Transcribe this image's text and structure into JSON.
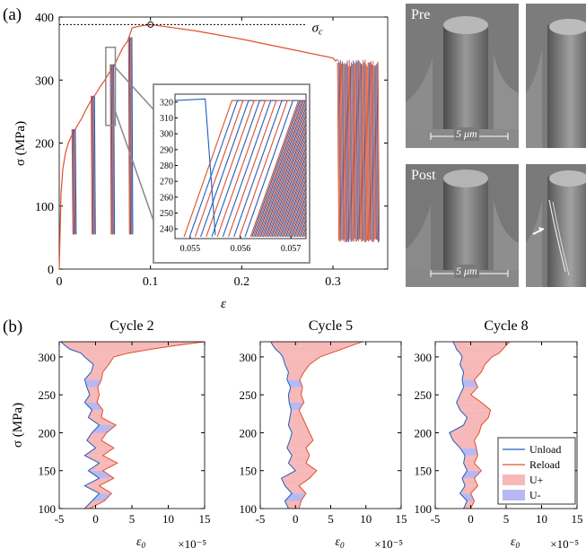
{
  "panel_labels": {
    "a": "(a)",
    "b": "(b)"
  },
  "photos": {
    "pre_label": "Pre",
    "post_label": "Post",
    "scale_bar": "5 μm"
  },
  "colors": {
    "unload": "#1f5fbf",
    "reload": "#e0502a",
    "u_plus": "#f7b8b8",
    "u_minus": "#b8b8f2"
  },
  "chart_data": [
    {
      "type": "line",
      "panel": "a",
      "xlabel": "ε",
      "ylabel": "σ (MPa)",
      "xlim": [
        0,
        0.36
      ],
      "ylim": [
        0,
        400
      ],
      "xticks": [
        0,
        0.1,
        0.2,
        0.3
      ],
      "xtick_labels": [
        "0",
        "0.1",
        "0.2",
        "0.3"
      ],
      "yticks": [
        0,
        100,
        200,
        300,
        400
      ],
      "yticks_labels": [
        "0",
        "100",
        "200",
        "300",
        "400"
      ],
      "annotation": {
        "text": "σc",
        "marker_x": 0.1,
        "marker_y": 388
      },
      "envelope": {
        "x": [
          0,
          0.001,
          0.002,
          0.004,
          0.007,
          0.01,
          0.013,
          0.016,
          0.02,
          0.025,
          0.03,
          0.035,
          0.04,
          0.045,
          0.05,
          0.055,
          0.06,
          0.065,
          0.07,
          0.075,
          0.08,
          0.09,
          0.1,
          0.12,
          0.15,
          0.2,
          0.25,
          0.3,
          0.303
        ],
        "y": [
          0,
          60,
          120,
          160,
          185,
          200,
          210,
          218,
          228,
          240,
          255,
          268,
          278,
          290,
          300,
          312,
          322,
          338,
          352,
          362,
          383,
          386,
          388,
          384,
          378,
          365,
          350,
          335,
          330
        ]
      },
      "unload_cycles_x": [
        0.016,
        0.037,
        0.058,
        0.078
      ],
      "unload_cycles_peak_y": [
        222,
        275,
        325,
        368
      ],
      "unload_min_y": 55,
      "serrated_region_x": [
        0.305,
        0.35
      ],
      "serrated_region_y": [
        42,
        333
      ]
    },
    {
      "type": "line",
      "panel": "a-inset",
      "xlim": [
        0.0547,
        0.0573
      ],
      "ylim": [
        235,
        325
      ],
      "xticks": [
        0.055,
        0.056,
        0.057
      ],
      "xtick_labels": [
        "0.055",
        "0.056",
        "0.057"
      ],
      "yticks": [
        240,
        250,
        260,
        270,
        280,
        290,
        300,
        310,
        320
      ],
      "ytick_labels": [
        "240",
        "250",
        "260",
        "270",
        "280",
        "290",
        "300",
        "310",
        "320"
      ]
    },
    {
      "type": "area",
      "panel": "b",
      "title": "Cycle 2",
      "xlabel": "ε0",
      "ylabel": "σ (MPa)",
      "exponent": "×10⁻⁵",
      "xlim": [
        -5,
        15
      ],
      "ylim": [
        100,
        320
      ],
      "xticks": [
        -5,
        0,
        5,
        10,
        15
      ],
      "xtick_labels": [
        "-5",
        "0",
        "5",
        "10",
        "15"
      ],
      "yticks": [
        100,
        150,
        200,
        250,
        300
      ],
      "ytick_labels": [
        "100",
        "150",
        "200",
        "250",
        "300"
      ],
      "series": [
        {
          "name": "Unload",
          "y": [
            100,
            110,
            120,
            130,
            140,
            150,
            160,
            170,
            180,
            190,
            200,
            210,
            220,
            230,
            240,
            250,
            260,
            270,
            280,
            290,
            300,
            305,
            310,
            315,
            320
          ],
          "x": [
            -1.5,
            -0.5,
            0.5,
            -1.5,
            0.5,
            -1.0,
            0.5,
            -1.5,
            0.0,
            -1.2,
            -0.5,
            0.5,
            -1.0,
            -0.5,
            -1.5,
            -0.8,
            -1.2,
            -1.5,
            -0.6,
            -0.3,
            -1.5,
            -2.0,
            -3.5,
            -4.2,
            -4.8
          ]
        },
        {
          "name": "Reload",
          "y": [
            100,
            110,
            120,
            130,
            140,
            150,
            160,
            170,
            180,
            190,
            200,
            210,
            220,
            230,
            240,
            250,
            260,
            270,
            280,
            290,
            300,
            305,
            310,
            315,
            320
          ],
          "x": [
            -0.8,
            1.2,
            2.2,
            0.5,
            2.5,
            1.0,
            3.0,
            1.0,
            2.5,
            0.8,
            1.5,
            2.8,
            0.8,
            1.0,
            0.2,
            0.5,
            0.3,
            0.8,
            1.0,
            1.8,
            2.5,
            4.5,
            7.5,
            11.0,
            15.0
          ]
        }
      ]
    },
    {
      "type": "area",
      "panel": "b",
      "title": "Cycle 5",
      "xlabel": "ε0",
      "exponent": "×10⁻⁵",
      "xlim": [
        -5,
        15
      ],
      "ylim": [
        100,
        320
      ],
      "xticks": [
        -5,
        0,
        5,
        10,
        15
      ],
      "xtick_labels": [
        "-5",
        "0",
        "5",
        "10",
        "15"
      ],
      "yticks": [
        100,
        150,
        200,
        250,
        300
      ],
      "ytick_labels": [
        "100",
        "150",
        "200",
        "250",
        "300"
      ],
      "series": [
        {
          "name": "Unload",
          "y": [
            100,
            110,
            120,
            130,
            140,
            150,
            160,
            170,
            180,
            190,
            200,
            210,
            220,
            230,
            240,
            250,
            260,
            270,
            280,
            290,
            300,
            305,
            310,
            315,
            320
          ],
          "x": [
            -1.0,
            -1.5,
            -0.5,
            -1.5,
            -2.0,
            0.0,
            -1.0,
            -0.5,
            -1.2,
            -0.8,
            -0.5,
            -1.0,
            -0.8,
            -0.6,
            -0.9,
            -1.0,
            -0.7,
            -1.2,
            -1.0,
            -1.5,
            -1.8,
            -2.2,
            -2.8,
            -3.2,
            -3.5
          ]
        },
        {
          "name": "Reload",
          "y": [
            100,
            110,
            120,
            130,
            140,
            150,
            160,
            170,
            180,
            190,
            200,
            210,
            220,
            230,
            240,
            250,
            260,
            270,
            280,
            290,
            300,
            305,
            310,
            315,
            320
          ],
          "x": [
            0.5,
            0.8,
            1.5,
            0.5,
            2.0,
            3.0,
            1.5,
            2.0,
            1.5,
            2.5,
            2.0,
            1.5,
            1.0,
            0.5,
            1.2,
            0.8,
            1.0,
            0.6,
            1.2,
            2.0,
            3.5,
            5.0,
            6.5,
            8.0,
            9.5
          ]
        }
      ]
    },
    {
      "type": "area",
      "panel": "b",
      "title": "Cycle 8",
      "xlabel": "ε0",
      "exponent": "×10⁻⁵",
      "xlim": [
        -5,
        15
      ],
      "ylim": [
        100,
        320
      ],
      "xticks": [
        -5,
        0,
        5,
        10,
        15
      ],
      "xtick_labels": [
        "-5",
        "0",
        "5",
        "10",
        "15"
      ],
      "yticks": [
        100,
        150,
        200,
        250,
        300
      ],
      "ytick_labels": [
        "100",
        "150",
        "200",
        "250",
        "300"
      ],
      "legend": [
        "Unload",
        "Reload",
        "U+",
        "U-"
      ],
      "legend_loc": "lower-right",
      "series": [
        {
          "name": "Unload",
          "y": [
            100,
            110,
            120,
            130,
            140,
            150,
            160,
            170,
            180,
            190,
            200,
            210,
            220,
            230,
            240,
            250,
            260,
            270,
            280,
            290,
            300,
            305,
            310,
            315,
            320
          ],
          "x": [
            -1.0,
            -0.5,
            -1.5,
            -0.8,
            -1.2,
            -0.5,
            -1.0,
            -0.8,
            -1.5,
            -2.5,
            -3.0,
            -1.0,
            -0.5,
            -1.5,
            -2.0,
            -1.5,
            -1.0,
            -1.2,
            -1.0,
            -1.5,
            -1.2,
            -1.5,
            -2.0,
            -2.2,
            -2.5
          ]
        },
        {
          "name": "Reload",
          "y": [
            100,
            110,
            120,
            130,
            140,
            150,
            160,
            170,
            180,
            190,
            200,
            210,
            220,
            230,
            240,
            250,
            260,
            270,
            280,
            290,
            300,
            305,
            310,
            315,
            320
          ],
          "x": [
            0.0,
            0.5,
            0.0,
            1.0,
            0.5,
            1.5,
            0.5,
            1.0,
            0.8,
            0.5,
            1.2,
            1.5,
            2.5,
            2.8,
            1.5,
            0.0,
            1.0,
            0.5,
            1.5,
            2.0,
            3.0,
            4.0,
            4.5,
            5.0,
            5.5
          ]
        }
      ]
    }
  ]
}
